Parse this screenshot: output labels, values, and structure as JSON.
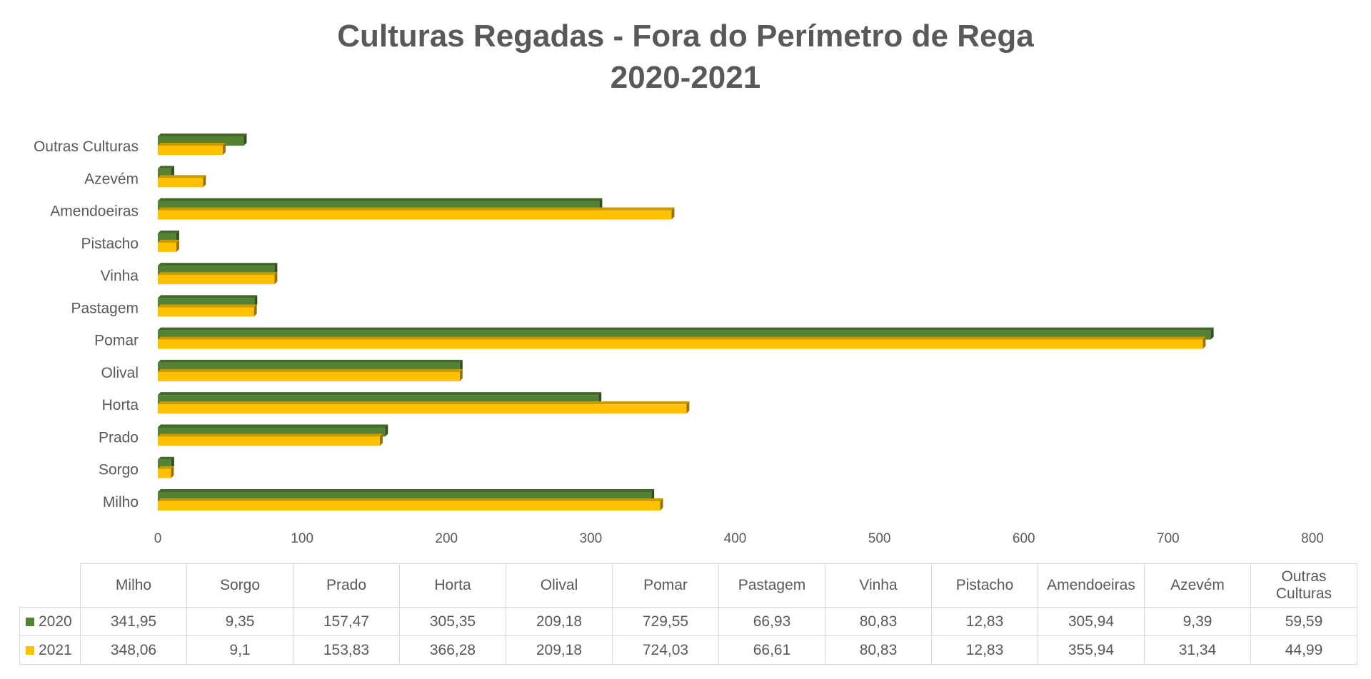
{
  "chart_data": {
    "type": "bar",
    "orientation": "horizontal",
    "title": "Culturas Regadas - Fora do Perímetro de Rega",
    "subtitle": "2020-2021",
    "categories": [
      "Milho",
      "Sorgo",
      "Prado",
      "Horta",
      "Olival",
      "Pomar",
      "Pastagem",
      "Vinha",
      "Pistacho",
      "Amendoeiras",
      "Azevém",
      "Outras Culturas"
    ],
    "category_labels": [
      "Milho",
      "Sorgo",
      "Prado",
      "Horta",
      "Olival",
      "Pomar",
      "Pastagem",
      "Vinha",
      "Pistacho",
      "Amendoeiras",
      "Azevém",
      [
        "Outras",
        "Culturas"
      ]
    ],
    "series": [
      {
        "name": "2020",
        "color": "#548235",
        "values": [
          341.95,
          9.35,
          157.47,
          305.35,
          209.18,
          729.55,
          66.93,
          80.83,
          12.83,
          305.94,
          9.39,
          59.59
        ],
        "labels": [
          "341,95",
          "9,35",
          "157,47",
          "305,35",
          "209,18",
          "729,55",
          "66,93",
          "80,83",
          "12,83",
          "305,94",
          "9,39",
          "59,59"
        ]
      },
      {
        "name": "2021",
        "color": "#ffc000",
        "values": [
          348.06,
          9.1,
          153.83,
          366.28,
          209.18,
          724.03,
          66.61,
          80.83,
          12.83,
          355.94,
          31.34,
          44.99
        ],
        "labels": [
          "348,06",
          "9,1",
          "153,83",
          "366,28",
          "209,18",
          "724,03",
          "66,61",
          "80,83",
          "12,83",
          "355,94",
          "31,34",
          "44,99"
        ]
      }
    ],
    "xlim": [
      0,
      800
    ],
    "x_ticks": [
      0,
      100,
      200,
      300,
      400,
      500,
      600,
      700,
      800
    ],
    "grid": false,
    "legend": "data-table",
    "data_table": true
  }
}
